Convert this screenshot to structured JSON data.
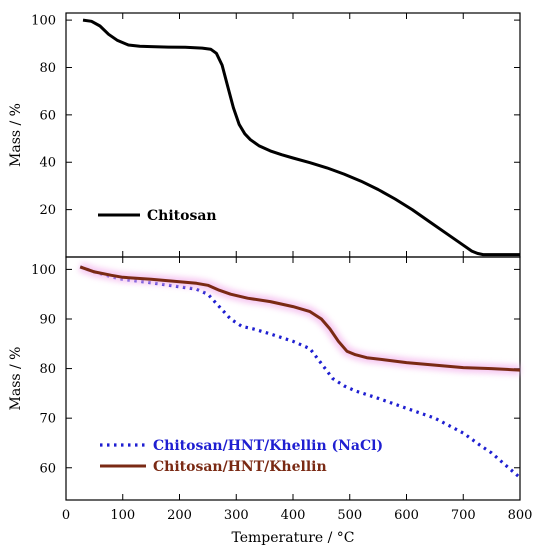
{
  "chart_data": [
    {
      "type": "line",
      "panel": "top",
      "xlabel": "",
      "ylabel": "Mass / %",
      "xlim": [
        0,
        800
      ],
      "ylim": [
        0,
        103
      ],
      "yticks": [
        20,
        40,
        60,
        80,
        100
      ],
      "grid": false,
      "legend": "lower-left",
      "series": [
        {
          "name": "Chitosan",
          "color": "#000000",
          "style": "solid",
          "x": [
            30,
            45,
            60,
            75,
            90,
            110,
            130,
            150,
            180,
            210,
            240,
            255,
            265,
            275,
            285,
            295,
            305,
            315,
            325,
            340,
            360,
            380,
            400,
            430,
            460,
            490,
            520,
            550,
            580,
            610,
            640,
            670,
            700,
            715,
            725,
            735,
            760,
            800
          ],
          "y": [
            100,
            99.5,
            97.5,
            94,
            91.5,
            89.5,
            89,
            88.8,
            88.6,
            88.5,
            88.2,
            87.7,
            86,
            81,
            72,
            63,
            56,
            52,
            49.5,
            47,
            44.8,
            43.2,
            41.8,
            39.8,
            37.6,
            35,
            32,
            28.5,
            24.5,
            20,
            15,
            10,
            5,
            2.5,
            1.5,
            1,
            1,
            1
          ]
        }
      ]
    },
    {
      "type": "line",
      "panel": "bottom",
      "xlabel": "Temperature / °C",
      "ylabel": "Mass / %",
      "xlim": [
        0,
        800
      ],
      "ylim": [
        53.5,
        102.5
      ],
      "xticks": [
        0,
        100,
        200,
        300,
        400,
        500,
        600,
        700,
        800
      ],
      "yticks": [
        60,
        70,
        80,
        90,
        100
      ],
      "grid": false,
      "legend": "lower-left",
      "series": [
        {
          "name": "Chitosan/HNT/Khellin (NaCl)",
          "color": "#1f1fd1",
          "style": "dotted",
          "x": [
            25,
            50,
            80,
            100,
            150,
            200,
            230,
            250,
            270,
            290,
            310,
            330,
            360,
            400,
            430,
            450,
            470,
            490,
            510,
            550,
            600,
            650,
            700,
            730,
            750,
            780,
            800
          ],
          "y": [
            100.5,
            99.5,
            98.5,
            98,
            97.3,
            96.5,
            96,
            95,
            92.5,
            90,
            88.5,
            88,
            87,
            85.5,
            84,
            81,
            78,
            76.5,
            75.5,
            74,
            72,
            70,
            67,
            64.5,
            63,
            60,
            58
          ]
        },
        {
          "name": "Chitosan/HNT/Khellin",
          "color": "#7a2a14",
          "style": "solid",
          "x": [
            25,
            50,
            80,
            100,
            150,
            200,
            230,
            250,
            270,
            290,
            320,
            360,
            400,
            430,
            450,
            465,
            480,
            495,
            510,
            530,
            560,
            600,
            650,
            700,
            750,
            800
          ],
          "y": [
            100.5,
            99.5,
            98.8,
            98.4,
            98,
            97.5,
            97.2,
            96.8,
            95.8,
            95,
            94.2,
            93.5,
            92.5,
            91.5,
            90,
            88,
            85.5,
            83.5,
            82.8,
            82.2,
            81.8,
            81.2,
            80.7,
            80.2,
            80,
            79.7
          ]
        }
      ]
    }
  ]
}
